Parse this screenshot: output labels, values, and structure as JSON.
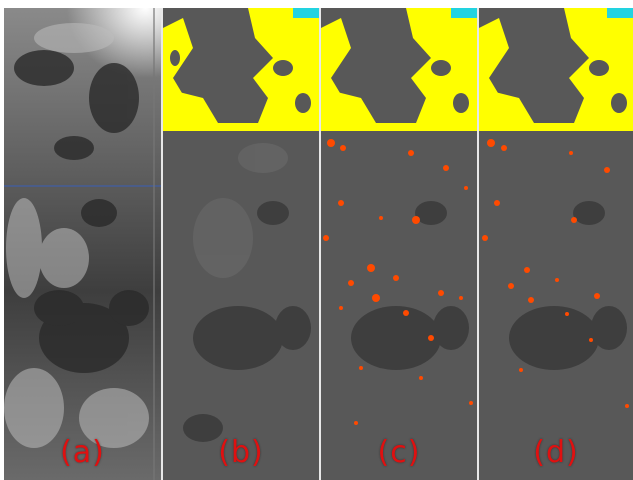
{
  "panels": [
    {
      "id": "a",
      "label": "(a)"
    },
    {
      "id": "b",
      "label": "(b)"
    },
    {
      "id": "c",
      "label": "(c)"
    },
    {
      "id": "d",
      "label": "(d)"
    }
  ],
  "colors": {
    "label": "#e01010",
    "background_gray": "#555555",
    "cloud_mask": "#ffff00",
    "water_mask": "#22d3e0",
    "detection": "#ff4a00"
  }
}
